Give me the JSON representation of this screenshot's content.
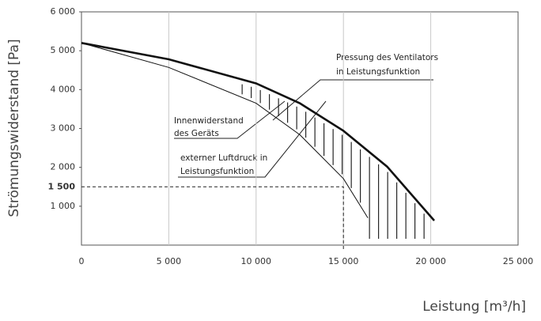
{
  "chart_data": {
    "type": "line",
    "xlabel": "Leistung [m³/h]",
    "ylabel": "Strömungswiderstand [Pa]",
    "xlim": [
      0,
      25000
    ],
    "ylim": [
      0,
      6000
    ],
    "xticks": [
      0,
      {
        "value": 5000,
        "label": "5 000"
      },
      {
        "value": 10000,
        "label": "10 000"
      },
      {
        "value": 15000,
        "label": "15 000"
      },
      {
        "value": 20000,
        "label": "20 000"
      },
      {
        "value": 25000,
        "label": "25 000"
      }
    ],
    "yticks": [
      {
        "value": 1000,
        "label": "1 000"
      },
      {
        "value": 2000,
        "label": "2 000"
      },
      {
        "value": 3000,
        "label": "3 000"
      },
      {
        "value": 4000,
        "label": "4 000"
      },
      {
        "value": 5000,
        "label": "5 000"
      },
      {
        "value": 6000,
        "label": "6 000"
      }
    ],
    "grid": "x",
    "series": [
      {
        "name": "Pressung des Ventilators in Leistungsfunktion",
        "color": "#111111",
        "width": 2.6,
        "x": [
          0,
          5000,
          10000,
          12500,
          15000,
          17500,
          20200
        ],
        "values": [
          5200,
          4780,
          4160,
          3650,
          2940,
          2020,
          630
        ]
      },
      {
        "name": "Innenwiderstand des Geräts",
        "color": "#111111",
        "width": 1,
        "x": [
          0,
          5000,
          10000,
          12500,
          15000,
          16400
        ],
        "values": [
          5200,
          4570,
          3650,
          2840,
          1710,
          700
        ]
      }
    ],
    "reference": {
      "x": 15000,
      "y": 1500,
      "label": "1 500"
    },
    "annotations": [
      {
        "lines": [
          "Pressung des Ventilators",
          "in Leistungsfunktion"
        ]
      },
      {
        "lines": [
          "Innenwiderstand",
          "des Geräts"
        ]
      },
      {
        "lines": [
          "externer  Luftdruck  in",
          "Leistungsfunktion"
        ]
      }
    ]
  }
}
